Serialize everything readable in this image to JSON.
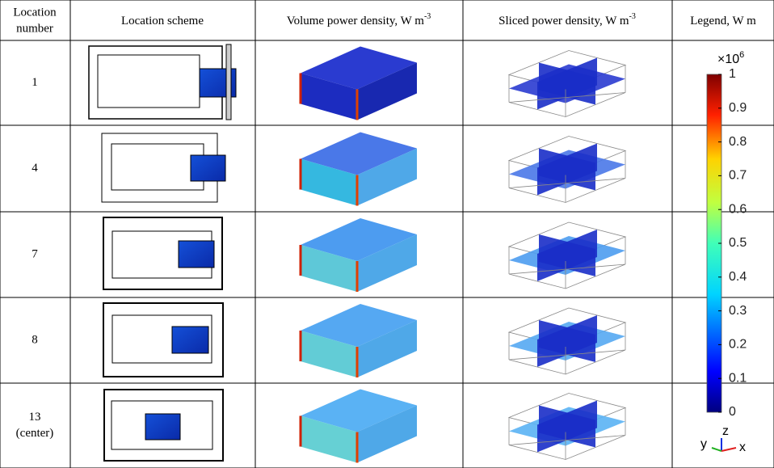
{
  "table": {
    "header": [
      {
        "text": "Location"
      },
      {
        "text": "number"
      },
      {
        "text": "Location scheme"
      },
      {
        "text": "Volume power density, W m",
        "sup": "-3"
      },
      {
        "text": "Sliced power density, W m",
        "sup": "-3"
      },
      {
        "text": "Legend, W m"
      }
    ],
    "rows": [
      {
        "label": "1"
      },
      {
        "label": "4"
      },
      {
        "label": "7"
      },
      {
        "label": "8"
      },
      {
        "label": "13",
        "note": "(center)"
      }
    ],
    "legend": {
      "multiplier": "×10",
      "exponent": "6",
      "ticks": [
        0,
        0.1,
        0.2,
        0.3,
        0.4,
        0.5,
        0.6,
        0.7,
        0.8,
        0.9,
        1
      ],
      "range": [
        0,
        1
      ],
      "axes": [
        "x",
        "y",
        "z"
      ]
    }
  }
}
